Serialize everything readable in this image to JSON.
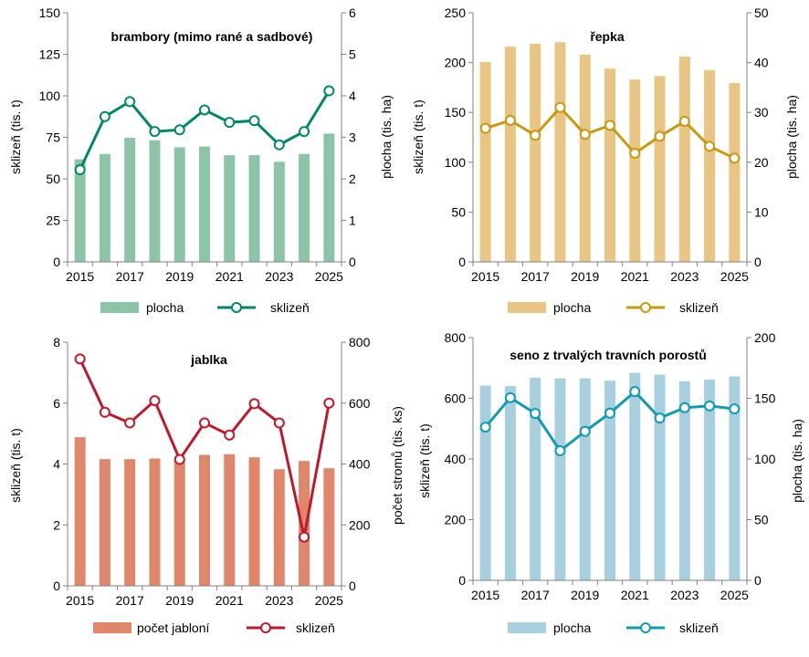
{
  "chart_data": [
    {
      "type": "bar+line",
      "title": "brambory (mimo rané a sadbové)",
      "xlabel": "",
      "ylabel": "sklizeň (tis. t)",
      "y2label": "plocha (tis. ha)",
      "years": [
        2015,
        2016,
        2017,
        2018,
        2019,
        2020,
        2021,
        2022,
        2023,
        2024,
        2025
      ],
      "x_tick_labels": [
        "2015",
        "2017",
        "2019",
        "2021",
        "2023",
        "2025"
      ],
      "ylim": [
        0,
        150
      ],
      "y_ticks": [
        "0",
        "25",
        "50",
        "75",
        "100",
        "125",
        "150"
      ],
      "y2lim": [
        0,
        6
      ],
      "y2_ticks": [
        "0",
        "1",
        "2",
        "3",
        "4",
        "5",
        "6"
      ],
      "bar_series": {
        "name": "plocha",
        "axis": "right",
        "color": "#8cc4a8",
        "values": [
          2.47,
          2.6,
          2.99,
          2.93,
          2.76,
          2.78,
          2.57,
          2.57,
          2.41,
          2.6,
          3.09
        ]
      },
      "line_series": {
        "name": "sklizeň",
        "axis": "left",
        "color": "#00876a",
        "values": [
          55.5,
          87.5,
          96.5,
          78.5,
          79.5,
          91.5,
          84,
          85,
          70.5,
          78.5,
          103
        ]
      },
      "legend": [
        "plocha",
        "sklizeň"
      ]
    },
    {
      "type": "bar+line",
      "title": "řepka",
      "xlabel": "",
      "ylabel": "sklizeň (tis. t)",
      "y2label": "plocha (tis. ha)",
      "years": [
        2015,
        2016,
        2017,
        2018,
        2019,
        2020,
        2021,
        2022,
        2023,
        2024,
        2025
      ],
      "x_tick_labels": [
        "2015",
        "2017",
        "2019",
        "2021",
        "2023",
        "2025"
      ],
      "ylim": [
        0,
        250
      ],
      "y_ticks": [
        "0",
        "50",
        "100",
        "150",
        "200",
        "250"
      ],
      "y2lim": [
        0,
        50
      ],
      "y2_ticks": [
        "0",
        "10",
        "20",
        "30",
        "40",
        "50"
      ],
      "bar_series": {
        "name": "plocha",
        "axis": "right",
        "color": "#e8c582",
        "values": [
          40.1,
          43.2,
          43.8,
          44.1,
          41.6,
          38.8,
          36.6,
          37.3,
          41.2,
          38.5,
          35.9
        ]
      },
      "line_series": {
        "name": "sklizeň",
        "axis": "left",
        "color": "#c8980e",
        "values": [
          134,
          142,
          127,
          155,
          128,
          137,
          109,
          126,
          141,
          116,
          104
        ]
      },
      "legend": [
        "plocha",
        "sklizeň"
      ]
    },
    {
      "type": "bar+line",
      "title": "jablka",
      "xlabel": "",
      "ylabel": "sklizeň (tis. t)",
      "y2label": "počet stromů (tis. ks)",
      "years": [
        2015,
        2016,
        2017,
        2018,
        2019,
        2020,
        2021,
        2022,
        2023,
        2024,
        2025
      ],
      "x_tick_labels": [
        "2015",
        "2017",
        "2019",
        "2021",
        "2023",
        "2025"
      ],
      "ylim": [
        0,
        8
      ],
      "y_ticks": [
        "0",
        "2",
        "4",
        "6",
        "8"
      ],
      "y2lim": [
        0,
        800
      ],
      "y2_ticks": [
        "0",
        "200",
        "400",
        "600",
        "800"
      ],
      "bar_series": {
        "name": "počet jabloní",
        "axis": "right",
        "color": "#e0866a",
        "values": [
          488,
          416,
          416,
          418,
          413,
          430,
          432,
          422,
          383,
          410,
          386
        ]
      },
      "line_series": {
        "name": "sklizeň",
        "axis": "left",
        "color": "#c0182a",
        "values": [
          7.45,
          5.7,
          5.35,
          6.08,
          4.15,
          5.35,
          4.95,
          5.98,
          5.35,
          1.6,
          6.0
        ]
      },
      "legend": [
        "počet jabloní",
        "sklizeň"
      ]
    },
    {
      "type": "bar+line",
      "title": "seno z trvalých travních porostů",
      "xlabel": "",
      "ylabel": "sklizeň (tis. t)",
      "y2label": "plocha (tis. ha)",
      "years": [
        2015,
        2016,
        2017,
        2018,
        2019,
        2020,
        2021,
        2022,
        2023,
        2024,
        2025
      ],
      "x_tick_labels": [
        "2015",
        "2017",
        "2019",
        "2021",
        "2023",
        "2025"
      ],
      "ylim": [
        0,
        800
      ],
      "y_ticks": [
        "0",
        "200",
        "400",
        "600",
        "800"
      ],
      "y2lim": [
        0,
        200
      ],
      "y2_ticks": [
        "0",
        "50",
        "100",
        "150",
        "200"
      ],
      "bar_series": {
        "name": "plocha",
        "axis": "right",
        "color": "#a7cfdd",
        "values": [
          160.5,
          160,
          167,
          166.5,
          166.5,
          164.5,
          171,
          169.5,
          164,
          165.5,
          168
        ]
      },
      "line_series": {
        "name": "sklizeň",
        "axis": "left",
        "color": "#0f9bb0",
        "values": [
          505,
          602,
          550,
          427,
          491,
          551,
          622,
          535,
          569,
          575,
          565
        ]
      },
      "legend": [
        "plocha",
        "sklizeň"
      ]
    }
  ]
}
